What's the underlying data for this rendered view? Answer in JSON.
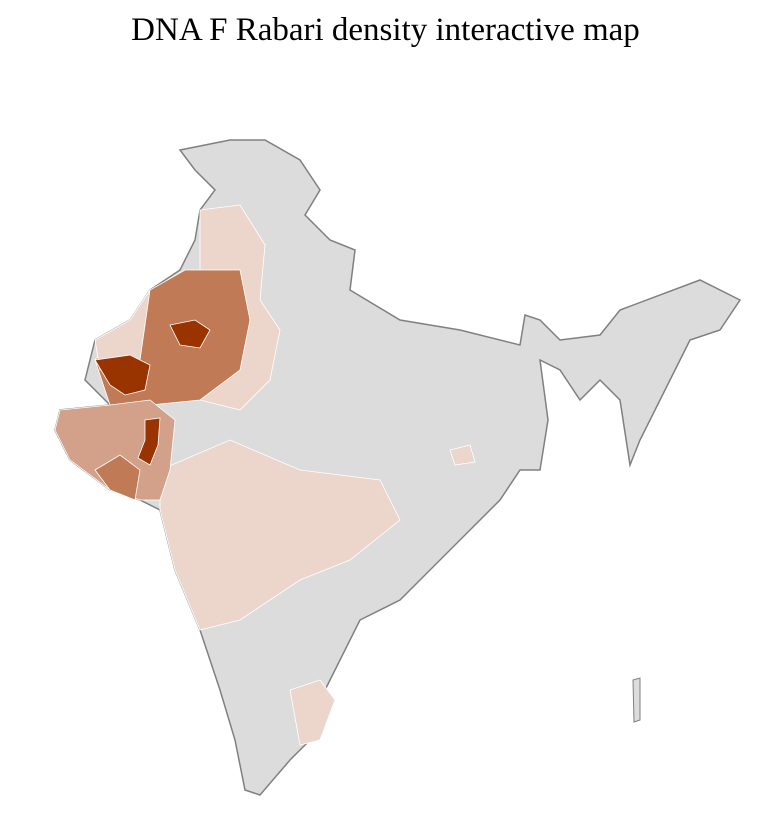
{
  "title": "DNA F Rabari density interactive map",
  "colors": {
    "no_data": "#dcdcdc",
    "border": "#808080",
    "district_border": "#ffffff",
    "level_1": "#ecd6cc",
    "level_2": "#d3a189",
    "level_3": "#c17a56",
    "level_4": "#993300"
  }
}
